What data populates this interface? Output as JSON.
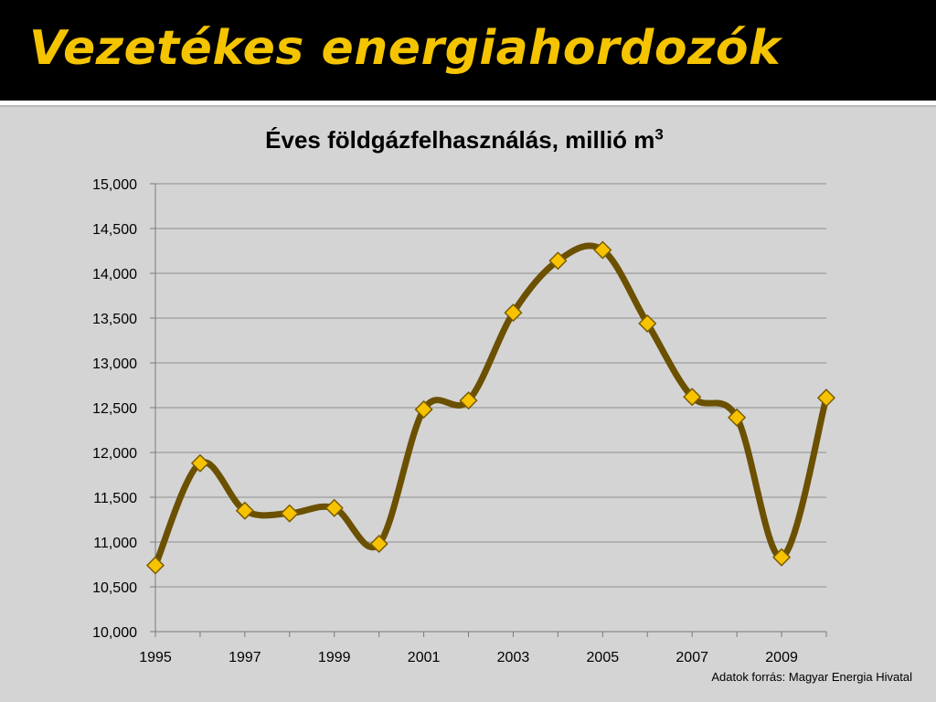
{
  "slide": {
    "title": "Vezetékes energiahordozók",
    "source_note": "Adatok forrás: Magyar Energia Hivatal"
  },
  "colors": {
    "header_bg": "#000000",
    "title_color": "#f5c400",
    "line_color": "#6b5000",
    "marker_fill": "#f7c300",
    "marker_stroke": "#7a5c00",
    "background": "#d4d4d4"
  },
  "chart_data": {
    "type": "line",
    "title_text": "Éves földgázfelhasználás, millió m",
    "title_sup": "3",
    "x": [
      1995,
      1996,
      1997,
      1998,
      1999,
      2000,
      2001,
      2002,
      2003,
      2004,
      2005,
      2006,
      2007,
      2008,
      2009,
      2010
    ],
    "series": [
      {
        "values": [
          10740,
          11880,
          11350,
          11320,
          11380,
          10980,
          12480,
          12580,
          13560,
          14140,
          14260,
          13440,
          12620,
          12390,
          10830,
          12610
        ]
      }
    ],
    "x_tick_labels": [
      "1995",
      "1997",
      "1999",
      "2001",
      "2003",
      "2005",
      "2007",
      "2009"
    ],
    "y_tick_labels": [
      "10,000",
      "10,500",
      "11,000",
      "11,500",
      "12,000",
      "12,500",
      "13,000",
      "13,500",
      "14,000",
      "14,500",
      "15,000"
    ],
    "ylim": [
      10000,
      15000
    ],
    "y_ticks": [
      10000,
      10500,
      11000,
      11500,
      12000,
      12500,
      13000,
      13500,
      14000,
      14500,
      15000
    ],
    "xlim": [
      1995,
      2010
    ],
    "grid": true,
    "smooth": true,
    "marker": "diamond",
    "legend": "none"
  }
}
